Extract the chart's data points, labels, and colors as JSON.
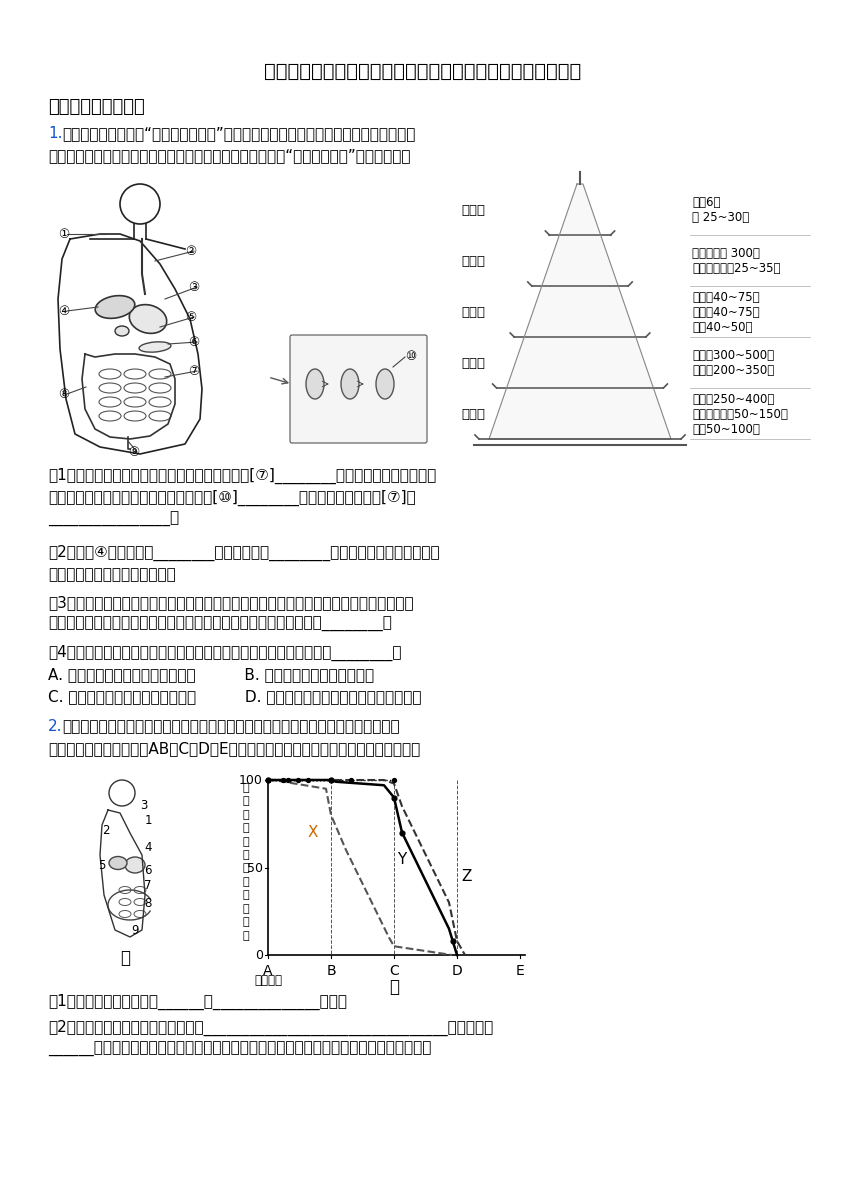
{
  "title": "生物人教版七年级下册期末非选择题期末综合探究题模拟试卷",
  "section1_title": "一、实验探究综合题",
  "q1_num": "1.",
  "q1_line1": "每年的５月２０日是“中国学生营养日”，了解消化系统结构与合理营养知识，有助于青",
  "q1_line2": "少年健康成长。请根据人体消化系统结构模式图和中国居民“平衡膳食宝塔”，回答问题：",
  "pyramid_layers": [
    "第五层",
    "第四层",
    "第三层",
    "第二层",
    "第一层"
  ],
  "pyramid_right_text": [
    "盐＜6克\n油 25~30克",
    "奶及奶制品 300克\n大豆及坚果类25~35克",
    "畜禽肉40~75克\n水产品40~75克\n蛋类40~50克",
    "蔬菜类300~500克\n水果类200~350克",
    "谷薯类250~400克\n全谷物和杂豆50~150克\n薯类50~100克"
  ],
  "q1p1_l1": "（1）如图中，消化食物和吸收营养的主要场所是[⑦]________，其内表面有许多的环形",
  "q1p1_l2": "皱襞，在皱襞的表面又有很多突起，称为[⑩]________，这样就大大增加了[⑦]的",
  "q1p1_l3": "________________。",
  "q1p2_l1": "（2）图中④所示器官为________，它所分泌的________中不含酶，能促进脂肪变成",
  "q1p2_l2": "脂肪微粒，以利于进一步消化。",
  "q1p3_l1": "（3）青少年处于长身体的关键阶段，在保证图中第一、第二层食物足够的摄入量的同时，",
  "q1p3_l2": "还应多吃处于第三层和第四层的食物，因为这些食物可以提供丰富的________。",
  "q1p4_l1": "（4）从平衡膳食的角度来看，下列午餐食谱所选食物搭配最合理的是________。",
  "q1p4_l2": "A. 炸鸡腿、薯条、奶油饼干、可乐          B. 面包、香肠、巧克力、牛奶",
  "q1p4_l3": "C. 馒头、红烧肉、煎鸡蛋、玉米粥          D. 米饭、酱牛肉、炒豆角、西红柿鸡蛋汤",
  "q2_num": "2.",
  "q2_line1": "如图所示：图甲是人体消化系统示意图，图乙的曲线分别表示淀粉、脂肪和蛋白质在",
  "q2_line2": "消化道中各部位（依次用AB、C、D、E表示）被消化的程度，请结合图示回答下列问题",
  "graph_ylabel_chars": [
    "营",
    "养",
    "物",
    "质",
    "未",
    "被",
    "消",
    "化",
    "的",
    "百",
    "分",
    "比"
  ],
  "graph_xlabel": "（口腔）",
  "graph_xticks": [
    "A",
    "B",
    "C",
    "D",
    "E"
  ],
  "graph_title_jia": "甲",
  "graph_title_yi": "乙",
  "q2p1": "（1）人体的消化系统是由______和______________构成。",
  "q2p2_l1": "（2）人体内消化和吸收的主要场所是________________________________，由图乙中",
  "q2p2_l2": "______段（请填写对应字母）表示，该消化器官内表面有许多环形皱襞，皱襞表面有许多绒",
  "bg_color": "#ffffff",
  "text_color": "#000000",
  "q_num_color": "#1155cc"
}
